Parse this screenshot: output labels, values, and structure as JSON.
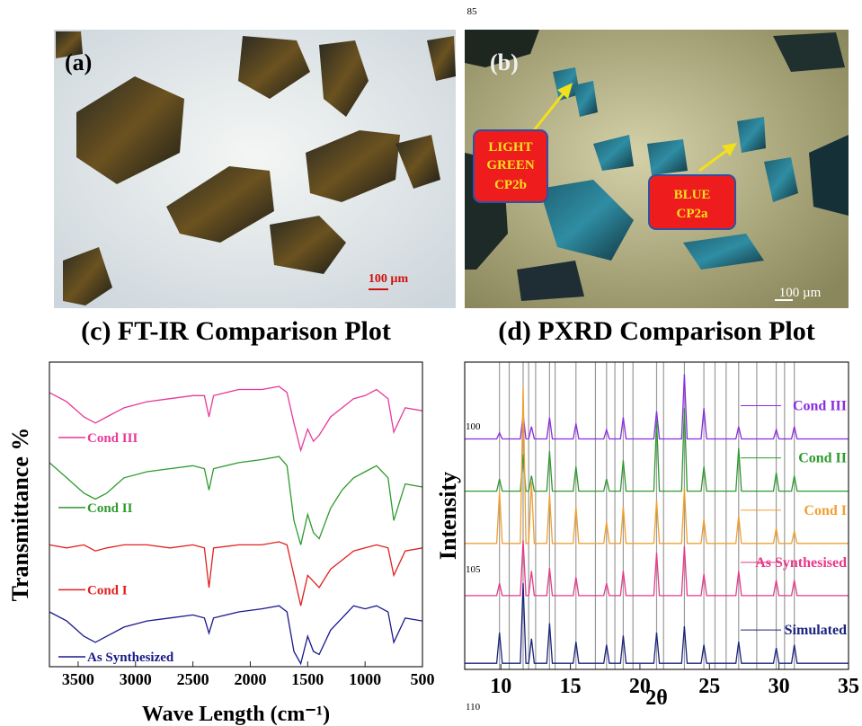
{
  "figure": {
    "margin_numbers": [
      "85",
      "100",
      "105",
      "110"
    ],
    "panel_a": {
      "label": "(a)",
      "scale_bar": "100 µm"
    },
    "panel_b": {
      "label": "(b)",
      "callouts": [
        [
          "LIGHT",
          "GREEN",
          "CP2b"
        ],
        [
          "BLUE",
          "CP2a"
        ]
      ],
      "scale_bar": "100 µm"
    }
  },
  "chart_data": [
    {
      "type": "line",
      "title": "(c) FT-IR Comparison Plot",
      "x_label": "Wave Length (cm⁻¹)",
      "y_label": "Transmittance %",
      "xlim": [
        3750,
        500
      ],
      "xticks": [
        3500,
        3000,
        2500,
        2000,
        1500,
        1000,
        500
      ],
      "ylim": [
        0,
        100
      ],
      "legend": "left",
      "x": [
        3750,
        3600,
        3450,
        3350,
        3250,
        3100,
        2900,
        2700,
        2500,
        2400,
        2360,
        2320,
        2100,
        1900,
        1750,
        1680,
        1620,
        1560,
        1500,
        1450,
        1400,
        1300,
        1200,
        1100,
        1000,
        900,
        800,
        750,
        650,
        500
      ],
      "series": [
        {
          "name": "Cond III",
          "color": "#e8389a",
          "values": [
            90,
            87,
            82,
            80,
            82,
            85,
            87,
            88,
            89,
            89,
            82,
            89,
            91,
            91,
            92,
            90,
            80,
            71,
            78,
            74,
            76,
            82,
            85,
            88,
            89,
            91,
            88,
            77,
            85,
            84
          ]
        },
        {
          "name": "Cond II",
          "color": "#2e9a2e",
          "values": [
            67,
            62,
            57,
            55,
            57,
            62,
            64,
            65,
            66,
            65,
            58,
            65,
            67,
            68,
            69,
            66,
            48,
            40,
            50,
            44,
            42,
            52,
            58,
            62,
            64,
            66,
            62,
            48,
            60,
            59
          ]
        },
        {
          "name": "Cond I",
          "color": "#e02020",
          "values": [
            40,
            39,
            40,
            38,
            39,
            40,
            40,
            39,
            40,
            39,
            26,
            39,
            40,
            40,
            41,
            40,
            30,
            20,
            30,
            28,
            26,
            32,
            35,
            38,
            39,
            40,
            39,
            30,
            38,
            39
          ]
        },
        {
          "name": "As Synthesized",
          "color": "#1a1a8c",
          "values": [
            18,
            15,
            10,
            8,
            10,
            13,
            15,
            16,
            17,
            16,
            11,
            16,
            18,
            19,
            20,
            18,
            5,
            1,
            10,
            5,
            4,
            12,
            16,
            20,
            19,
            20,
            18,
            8,
            16,
            15
          ]
        }
      ]
    },
    {
      "type": "line",
      "title": "(d) PXRD Comparison Plot",
      "x_label": "2θ",
      "y_label": "Intensity",
      "xlim": [
        7.4,
        35
      ],
      "xticks": [
        10,
        15,
        20,
        25,
        30,
        35
      ],
      "ylim": [
        0,
        100
      ],
      "legend": "right",
      "reference_lines": [
        9.9,
        10.6,
        11.6,
        12.0,
        12.5,
        13.5,
        13.9,
        15.4,
        16.8,
        17.6,
        18.2,
        18.8,
        19.5,
        21.2,
        21.7,
        23.2,
        24.6,
        25.4,
        26.2,
        27.1,
        28.4,
        29.8,
        30.4,
        31.1
      ],
      "x": [
        7.4,
        9.7,
        9.9,
        10.1,
        11.4,
        11.6,
        11.8,
        12.0,
        12.2,
        12.4,
        13.3,
        13.5,
        13.7,
        15.2,
        15.4,
        15.6,
        17.4,
        17.6,
        17.8,
        18.6,
        18.8,
        19.0,
        21.0,
        21.2,
        21.4,
        23.0,
        23.2,
        23.4,
        24.4,
        24.6,
        24.8,
        26.9,
        27.1,
        27.3,
        29.6,
        29.8,
        30.0,
        30.9,
        31.1,
        31.3,
        35
      ],
      "series": [
        {
          "name": "Cond III",
          "color": "#8a2be2",
          "values": [
            75,
            75,
            77,
            75,
            75,
            83,
            75,
            75,
            79,
            75,
            75,
            82,
            75,
            75,
            80,
            75,
            75,
            78,
            75,
            75,
            82,
            75,
            75,
            84,
            75,
            75,
            96,
            75,
            75,
            85,
            75,
            75,
            79,
            75,
            75,
            78,
            75,
            75,
            79,
            75,
            75
          ]
        },
        {
          "name": "Cond II",
          "color": "#2e9a2e",
          "values": [
            58,
            58,
            62,
            58,
            58,
            70,
            58,
            58,
            63,
            58,
            58,
            71,
            58,
            58,
            66,
            58,
            58,
            62,
            58,
            58,
            68,
            58,
            58,
            81,
            58,
            58,
            85,
            58,
            58,
            66,
            58,
            58,
            72,
            58,
            58,
            64,
            58,
            58,
            63,
            58,
            58
          ]
        },
        {
          "name": "Cond I",
          "color": "#f0a030",
          "values": [
            41,
            41,
            58,
            41,
            41,
            92,
            41,
            41,
            61,
            41,
            41,
            57,
            41,
            41,
            53,
            41,
            41,
            48,
            41,
            41,
            53,
            41,
            41,
            55,
            41,
            41,
            59,
            41,
            41,
            49,
            41,
            41,
            50,
            41,
            41,
            46,
            41,
            41,
            45,
            41,
            41
          ]
        },
        {
          "name": "As Synthesised",
          "color": "#e8388a",
          "values": [
            24,
            24,
            28,
            24,
            24,
            42,
            24,
            24,
            32,
            24,
            24,
            33,
            24,
            24,
            30,
            24,
            24,
            28,
            24,
            24,
            32,
            24,
            24,
            38,
            24,
            24,
            40,
            24,
            24,
            31,
            24,
            24,
            32,
            24,
            24,
            29,
            24,
            24,
            29,
            24,
            24
          ]
        },
        {
          "name": "Simulated",
          "color": "#1a237e",
          "values": [
            2,
            2,
            12,
            2,
            2,
            28,
            2,
            2,
            10,
            2,
            2,
            15,
            2,
            2,
            9,
            2,
            2,
            8,
            2,
            2,
            11,
            2,
            2,
            12,
            2,
            2,
            14,
            2,
            2,
            8,
            2,
            2,
            9,
            2,
            2,
            7,
            2,
            2,
            8,
            2,
            2
          ]
        }
      ]
    }
  ]
}
